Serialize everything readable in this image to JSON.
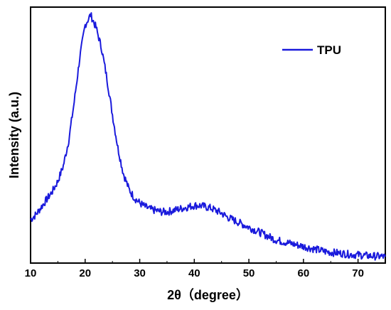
{
  "chart_data": {
    "type": "line",
    "title": "",
    "xlabel": "2θ（degree）",
    "ylabel": "Intensity (a.u.)",
    "xlim": [
      10,
      75
    ],
    "ylim": [
      0,
      1
    ],
    "xticks": [
      10,
      20,
      30,
      40,
      50,
      60,
      70
    ],
    "yticks_shown": false,
    "grid": false,
    "legend": {
      "position": "top-right"
    },
    "series": [
      {
        "name": "TPU",
        "color": "#1a1adc",
        "x": [
          10,
          11,
          12,
          13,
          14,
          15,
          16,
          17,
          18,
          19,
          20,
          21,
          22,
          23,
          24,
          25,
          26,
          27,
          28,
          29,
          30,
          31,
          32,
          33,
          34,
          35,
          36,
          37,
          38,
          39,
          40,
          41,
          42,
          43,
          44,
          45,
          46,
          47,
          48,
          49,
          50,
          51,
          52,
          53,
          54,
          55,
          56,
          57,
          58,
          59,
          60,
          61,
          62,
          63,
          64,
          65,
          66,
          67,
          68,
          69,
          70,
          71,
          72,
          73,
          74,
          75
        ],
        "y": [
          0.17,
          0.19,
          0.22,
          0.25,
          0.28,
          0.32,
          0.38,
          0.48,
          0.63,
          0.8,
          0.93,
          0.97,
          0.92,
          0.84,
          0.72,
          0.58,
          0.45,
          0.35,
          0.29,
          0.255,
          0.235,
          0.22,
          0.21,
          0.205,
          0.2,
          0.2,
          0.205,
          0.21,
          0.215,
          0.22,
          0.225,
          0.225,
          0.22,
          0.215,
          0.205,
          0.195,
          0.18,
          0.17,
          0.16,
          0.15,
          0.14,
          0.13,
          0.12,
          0.11,
          0.1,
          0.09,
          0.085,
          0.08,
          0.075,
          0.07,
          0.065,
          0.06,
          0.055,
          0.05,
          0.045,
          0.042,
          0.04,
          0.038,
          0.035,
          0.033,
          0.032,
          0.03,
          0.028,
          0.027,
          0.026,
          0.025
        ]
      }
    ]
  }
}
